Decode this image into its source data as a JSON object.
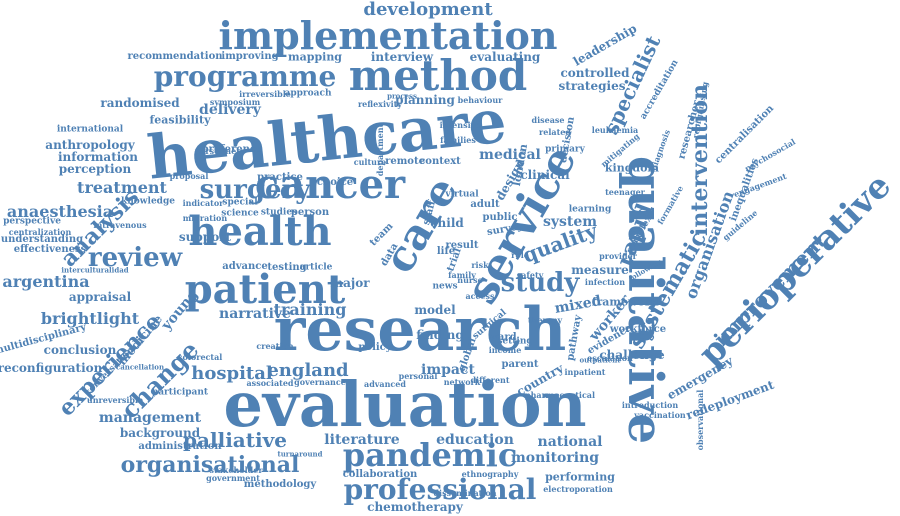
{
  "accent_color": "#4f81b4",
  "words": [
    "healthcare",
    "research",
    "evaluation",
    "qualitative",
    "service",
    "care",
    "cancer",
    "health",
    "patient",
    "method",
    "implementation",
    "perioperative",
    "pandemic",
    "professional",
    "programme",
    "surgery",
    "review",
    "study",
    "analysis",
    "rapid",
    "systematic",
    "intervention",
    "experience",
    "change",
    "organisational",
    "improvement",
    "specialist",
    "quality",
    "organisation",
    "development",
    "palliative",
    "england",
    "hospital",
    "management",
    "anaesthesia",
    "treatment",
    "argentina",
    "brightlight",
    "training",
    "narrative",
    "impact",
    "mixed",
    "worker",
    "national",
    "literature",
    "education",
    "monitoring",
    "chemotherapy",
    "methodology",
    "collaboration",
    "delivery",
    "randomised",
    "anthropology",
    "information",
    "perception",
    "recommendation",
    "improving",
    "mapping",
    "interview",
    "evaluating",
    "leadership",
    "controlled",
    "strategies",
    "planning",
    "medical",
    "clinical",
    "system",
    "support",
    "finding",
    "model",
    "framework",
    "challenge",
    "workforce",
    "redeployment",
    "emergency",
    "background",
    "administration",
    "performing",
    "electroporation",
    "ethnography",
    "conclusion",
    "reconfiguration",
    "multidisciplinary",
    "appraisal",
    "medicine",
    "young",
    "effectiveness",
    "understanding",
    "centralization",
    "perspective",
    "feasibility",
    "international",
    "major",
    "child",
    "adult",
    "public",
    "setting",
    "income",
    "policy",
    "creation",
    "global",
    "country",
    "measure",
    "design",
    "london",
    "kingdom",
    "inequalities",
    "centralisation",
    "researcher",
    "psychosocial",
    "engagement",
    "accreditation",
    "leukaemia",
    "teenager",
    "provider",
    "following",
    "introduction",
    "observational",
    "intensive",
    "families",
    "department",
    "remote",
    "context",
    "culture",
    "choice",
    "person",
    "studies",
    "science",
    "special",
    "preference",
    "practice",
    "knowledge",
    "indicator",
    "migration",
    "intravenous",
    "interculturalidad",
    "advance",
    "testing",
    "article",
    "network",
    "personal",
    "advanced",
    "governance",
    "associated",
    "stakeholder",
    "government",
    "turnaround",
    "dissemination",
    "approach",
    "reflexivity",
    "irreversible",
    "symposium",
    "behaviour",
    "process",
    "survey",
    "virtual",
    "personnel",
    "proposal",
    "conversation",
    "participant",
    "unreversible",
    "colorectal",
    "cancellation",
    "staff",
    "team",
    "result",
    "data",
    "trial",
    "life",
    "news",
    "primary",
    "related",
    "disease",
    "decision",
    "mitigating",
    "diagnosis",
    "complex",
    "parent",
    "ward",
    "surgical",
    "different",
    "therapy",
    "inpatient",
    "evidence",
    "escalation",
    "pathway",
    "safety",
    "reorganising",
    "formative",
    "pharmaceutical",
    "guideline",
    "vaccination",
    "learning",
    "infection",
    "outpatient",
    "nurse",
    "role",
    "risk",
    "access",
    "family"
  ]
}
